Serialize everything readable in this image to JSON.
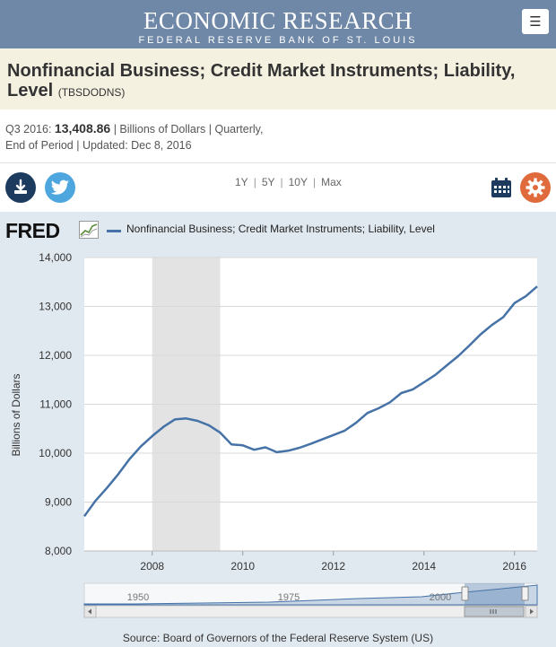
{
  "header": {
    "title": "ECONOMIC RESEARCH",
    "subtitle": "FEDERAL RESERVE BANK OF ST. LOUIS",
    "menu_icon": "hamburger-icon"
  },
  "series": {
    "title": "Nonfinancial Business; Credit Market Instruments; Liability, Level",
    "id": "(TBSDODNS)"
  },
  "meta": {
    "period_label": "Q3 2016:",
    "value": "13,408.86",
    "units": "| Billions of Dollars | Quarterly,",
    "line2_label": "End of Period | Updated:",
    "updated": "Dec 8, 2016"
  },
  "toolbar": {
    "ranges": [
      "1Y",
      "5Y",
      "10Y",
      "Max"
    ],
    "download_icon": "download-icon",
    "twitter_icon": "twitter-icon",
    "calendar_icon": "calendar-icon",
    "settings_icon": "gear-icon"
  },
  "chart_header": {
    "logo": "FRED",
    "legend": "Nonfinancial Business; Credit Market Instruments; Liability, Level"
  },
  "source": "Source: Board of Governors of the Federal Reserve System (US)",
  "colors": {
    "header_bg": "#6f88a8",
    "title_band": "#f4f1e1",
    "series_line": "#4572a7",
    "recession": "#e3e3e3",
    "chart_bg": "#e1e9f0",
    "gear": "#e06a3b",
    "download": "#1d3a5f",
    "twitter": "#4da7de"
  },
  "chart_data": {
    "type": "line",
    "ylabel": "Billions of Dollars",
    "ylim": [
      8000,
      14000
    ],
    "yticks": [
      "8,000",
      "9,000",
      "10,000",
      "11,000",
      "12,000",
      "13,000",
      "14,000"
    ],
    "xlim": [
      2006.5,
      2016.5
    ],
    "xticks": [
      "2008",
      "2010",
      "2012",
      "2014",
      "2016"
    ],
    "grid": true,
    "recession": [
      2008.0,
      2009.5
    ],
    "series": [
      {
        "name": "Nonfinancial Business; Credit Market Instruments; Liability, Level",
        "x": [
          2006.5,
          2006.75,
          2007.0,
          2007.25,
          2007.5,
          2007.75,
          2008.0,
          2008.25,
          2008.5,
          2008.75,
          2009.0,
          2009.25,
          2009.5,
          2009.75,
          2010.0,
          2010.25,
          2010.5,
          2010.75,
          2011.0,
          2011.25,
          2011.5,
          2011.75,
          2012.0,
          2012.25,
          2012.5,
          2012.75,
          2013.0,
          2013.25,
          2013.5,
          2013.75,
          2014.0,
          2014.25,
          2014.5,
          2014.75,
          2015.0,
          2015.25,
          2015.5,
          2015.75,
          2016.0,
          2016.25,
          2016.5
        ],
        "values": [
          8710,
          9030,
          9290,
          9570,
          9880,
          10140,
          10350,
          10540,
          10690,
          10710,
          10660,
          10570,
          10420,
          10180,
          10160,
          10070,
          10120,
          10020,
          10050,
          10110,
          10190,
          10280,
          10370,
          10460,
          10620,
          10820,
          10920,
          11040,
          11230,
          11300,
          11450,
          11600,
          11790,
          11980,
          12200,
          12430,
          12620,
          12780,
          13070,
          13210,
          13408.86
        ]
      }
    ],
    "navigator": {
      "labels": [
        "1950",
        "1975",
        "2000"
      ]
    }
  }
}
